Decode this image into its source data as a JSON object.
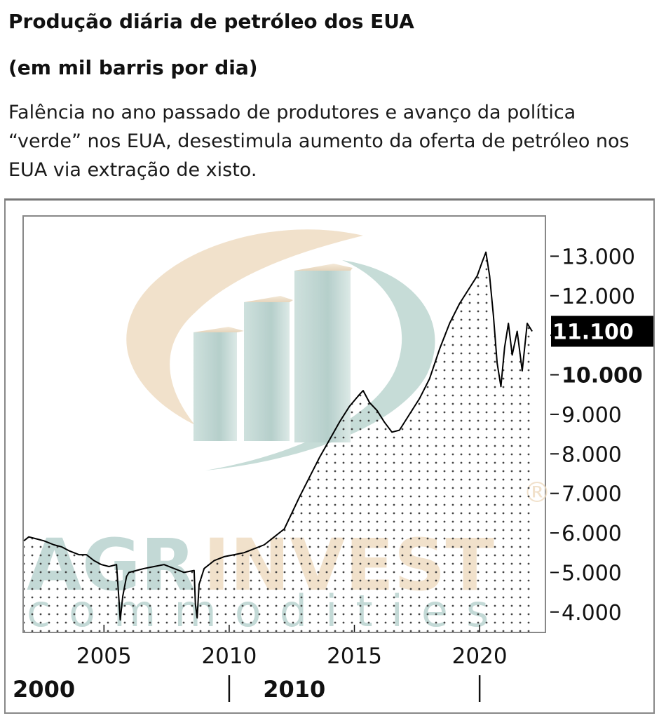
{
  "title": "Produção diária de petróleo dos EUA",
  "subtitle": "(em mil barris por dia)",
  "description": "Falência no ano passado de produtores e avanço da política “verde” nos EUA, desestimula aumento da oferta de petróleo nos EUA via extração de xisto.",
  "watermark": {
    "brand": "AGRINVEST",
    "brand_part1": "AGR",
    "brand_part2": "INVEST",
    "tagline": "commodities",
    "registered": "®"
  },
  "colors": {
    "line": "#000000",
    "fill_dots": "#333333",
    "current_label_bg": "#000000",
    "current_label_text": "#ffffff",
    "watermark_teal": "#b9d3cf",
    "watermark_beige": "#efdcc2"
  },
  "chart_data": {
    "type": "area",
    "title": "Produção diária de petróleo dos EUA",
    "ylabel": "",
    "xlabel": "",
    "ylim": [
      3500,
      14000
    ],
    "xlim": [
      2001.8,
      2022.6
    ],
    "y_axis_position": "right",
    "grid": false,
    "yticks": [
      4000,
      5000,
      6000,
      7000,
      8000,
      9000,
      10000,
      11000,
      12000,
      13000
    ],
    "ytick_labels": [
      "4.000",
      "5.000",
      "6.000",
      "7.000",
      "8.000",
      "9.000",
      "10.000",
      "",
      "12.000",
      "13.000"
    ],
    "ytick_major": [
      10000
    ],
    "current_value": 11100,
    "current_label": "11.100",
    "xticks": [
      2005,
      2010,
      2015,
      2020
    ],
    "xtick_labels": [
      "2005",
      "2010",
      "2015",
      "2020"
    ],
    "xticks_major": [
      2000,
      2010
    ],
    "xtick_major_labels": [
      "2000",
      "2010"
    ],
    "xticks_major_marker_years": [
      2010,
      2020
    ],
    "series": [
      {
        "x": [
          2001.8,
          2002.0,
          2002.3,
          2002.6,
          2003.0,
          2003.3,
          2003.6,
          2004.0,
          2004.3,
          2004.6,
          2004.9,
          2005.2,
          2005.5,
          2005.6,
          2005.65,
          2005.75,
          2005.9,
          2006.0,
          2006.3,
          2006.6,
          2007.0,
          2007.4,
          2007.8,
          2008.2,
          2008.6,
          2008.65,
          2008.72,
          2008.8,
          2009.0,
          2009.4,
          2009.8,
          2010.2,
          2010.6,
          2011.0,
          2011.4,
          2011.8,
          2012.2,
          2012.5,
          2012.8,
          2013.2,
          2013.6,
          2014.0,
          2014.4,
          2014.8,
          2015.2,
          2015.35,
          2015.6,
          2015.9,
          2016.2,
          2016.5,
          2016.8,
          2017.2,
          2017.6,
          2018.0,
          2018.4,
          2018.8,
          2019.2,
          2019.6,
          2019.9,
          2020.1,
          2020.25,
          2020.4,
          2020.55,
          2020.7,
          2020.85,
          2021.0,
          2021.15,
          2021.3,
          2021.5,
          2021.7,
          2021.9,
          2022.1
        ],
        "y": [
          5800,
          5900,
          5850,
          5800,
          5700,
          5650,
          5550,
          5450,
          5450,
          5300,
          5200,
          5150,
          5200,
          4300,
          3800,
          4400,
          4900,
          5000,
          5050,
          5100,
          5150,
          5200,
          5100,
          5000,
          5050,
          4200,
          3850,
          4700,
          5100,
          5300,
          5400,
          5450,
          5500,
          5600,
          5700,
          5900,
          6100,
          6500,
          6900,
          7400,
          7900,
          8350,
          8800,
          9200,
          9500,
          9600,
          9300,
          9100,
          8800,
          8550,
          8600,
          9000,
          9400,
          9900,
          10650,
          11300,
          11800,
          12200,
          12500,
          12850,
          13100,
          12500,
          11500,
          10300,
          9700,
          10700,
          11300,
          10500,
          11100,
          10100,
          11300,
          11100
        ]
      }
    ]
  }
}
